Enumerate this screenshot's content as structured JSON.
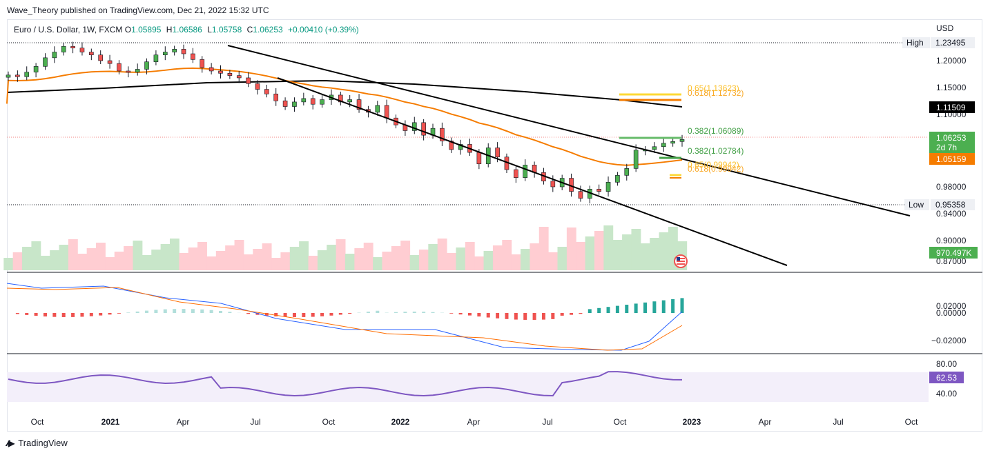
{
  "publisher": "Wave_Theory published on TradingView.com, Dec 21, 2022 15:32 UTC",
  "legend": {
    "symbol": "Euro / U.S. Dollar, 1W, FXCM",
    "open_label": "O",
    "open": "1.05895",
    "high_label": "H",
    "high": "1.06586",
    "low_label": "L",
    "low": "1.05758",
    "close_label": "C",
    "close": "1.06253",
    "change": "+0.00410 (+0.39%)"
  },
  "footer": {
    "logo_text": "TradingView"
  },
  "colors": {
    "up": "#26a69a",
    "up_body": "#4caf50",
    "down": "#ef5350",
    "ema": "#f57c00",
    "sma": "#000000",
    "fib_yellow": "#fbc02d",
    "fib_green": "#66bb6a",
    "macd": "#2962ff",
    "signal": "#ff6d00",
    "rsi": "#7e57c2"
  },
  "chart_data": [
    {
      "type": "candlestick",
      "currency": "USD",
      "y_ticks": [
        "1.20000",
        "1.15000",
        "1.10000",
        "0.98000",
        "0.94000",
        "0.90000",
        "0.87000"
      ],
      "x_ticks": [
        "Oct",
        "2021",
        "Apr",
        "Jul",
        "Oct",
        "2022",
        "Apr",
        "Jul",
        "Oct",
        "2023",
        "Apr",
        "Jul",
        "Oct"
      ],
      "high_marker": {
        "label": "High",
        "value": "1.23495"
      },
      "low_marker": {
        "label": "Low",
        "value": "0.95358"
      },
      "price_tags": [
        {
          "value": "1.11509",
          "bg": "#000000"
        },
        {
          "value": "1.06253",
          "sub": "2d 7h",
          "bg": "#4caf50"
        },
        {
          "value": "1.05159",
          "bg": "#f57c00"
        },
        {
          "value": "970.497K",
          "bg": "#4caf50"
        }
      ],
      "fib_labels": [
        {
          "text": "0.65(1.13623)",
          "color": "#fbc02d"
        },
        {
          "text": "0.618(1.12732)",
          "color": "#fbc02d"
        },
        {
          "text": "0.382(1.06089)",
          "color": "#4caf50"
        },
        {
          "text": "0.382(1.02784)",
          "color": "#4caf50"
        },
        {
          "text": "0.65(0.99942)",
          "color": "#fbc02d"
        },
        {
          "text": "0.618(0.99942)",
          "color": "#fbc02d"
        }
      ],
      "close_series_approx": [
        1.175,
        1.172,
        1.18,
        1.19,
        1.205,
        1.215,
        1.225,
        1.222,
        1.215,
        1.21,
        1.2,
        1.195,
        1.182,
        1.18,
        1.185,
        1.198,
        1.21,
        1.215,
        1.22,
        1.212,
        1.202,
        1.188,
        1.182,
        1.178,
        1.174,
        1.17,
        1.16,
        1.15,
        1.142,
        1.13,
        1.12,
        1.128,
        1.134,
        1.124,
        1.132,
        1.14,
        1.128,
        1.132,
        1.115,
        1.11,
        1.122,
        1.1,
        1.088,
        1.078,
        1.092,
        1.07,
        1.082,
        1.06,
        1.045,
        1.054,
        1.04,
        1.02,
        1.048,
        1.032,
        1.01,
        0.996,
        1.018,
        1.005,
        0.99,
        0.98,
        0.995,
        0.972,
        0.96,
        0.976,
        0.972,
        0.988,
        1.0,
        1.012,
        1.044,
        1.045,
        1.05,
        1.056,
        1.059,
        1.0625
      ]
    },
    {
      "type": "macd",
      "y_ticks": [
        "0.02000",
        "0.00000",
        "−0.02000"
      ]
    },
    {
      "type": "rsi",
      "y_ticks": [
        "80.00",
        "40.00"
      ],
      "value_tag": "62.53"
    }
  ]
}
